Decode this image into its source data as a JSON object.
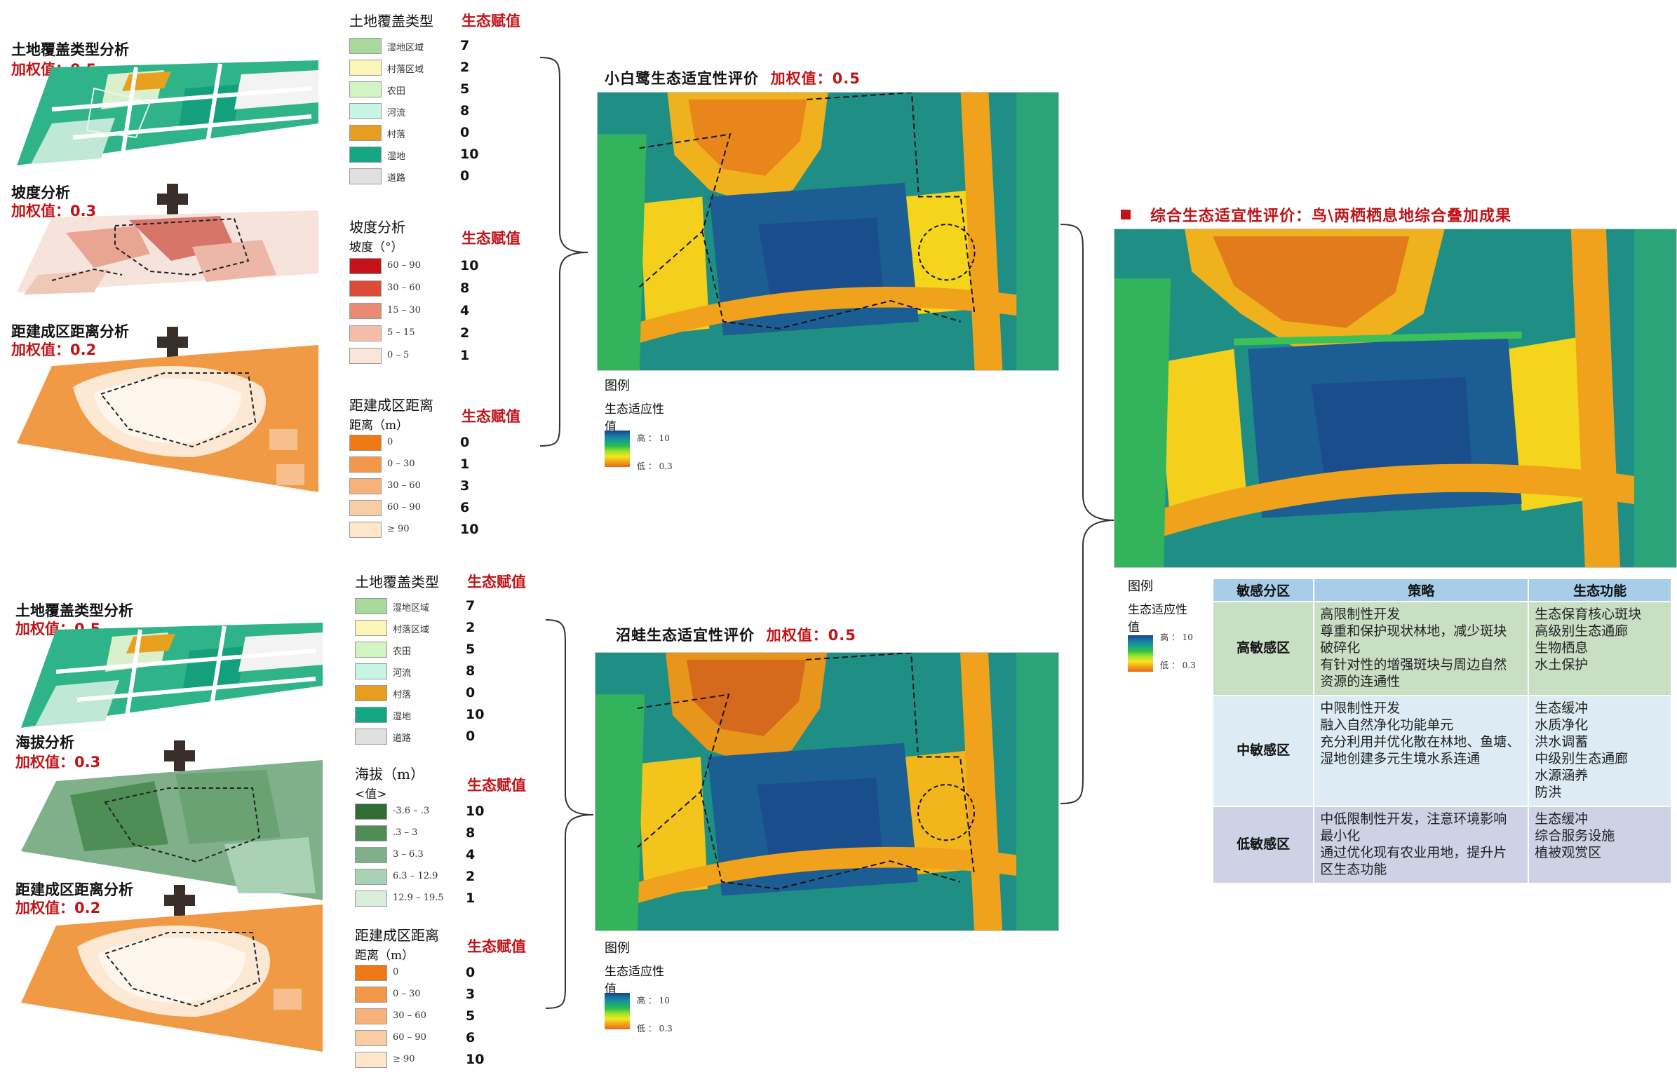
{
  "group_top": {
    "layers": [
      {
        "title": "土地覆盖类型分析",
        "weight": "加权值：0.5"
      },
      {
        "title": "坡度分析",
        "weight": "加权值：0.3"
      },
      {
        "title": "距建成区距离分析",
        "weight": "加权值：0.2"
      }
    ],
    "legend_landcover": {
      "heading": "土地覆盖类型",
      "score_heading": "生态赋值",
      "rows": [
        {
          "label": "湿地区域",
          "score": "7",
          "color": "#a9d89c"
        },
        {
          "label": "村落区域",
          "score": "2",
          "color": "#fbf6b8"
        },
        {
          "label": "农田",
          "score": "5",
          "color": "#d2f3c2"
        },
        {
          "label": "河流",
          "score": "8",
          "color": "#c6f5e4"
        },
        {
          "label": "村落",
          "score": "0",
          "color": "#e79d1f"
        },
        {
          "label": "湿地",
          "score": "10",
          "color": "#15a783"
        },
        {
          "label": "道路",
          "score": "0",
          "color": "#e0e0e0"
        }
      ]
    },
    "legend_second": {
      "heading": "坡度分析",
      "subheading": "坡度（°）",
      "score_heading": "生态赋值",
      "rows": [
        {
          "label": "60 – 90",
          "score": "10",
          "color": "#c5121b"
        },
        {
          "label": "30 – 60",
          "score": "8",
          "color": "#dc4b37"
        },
        {
          "label": "15 – 30",
          "score": "4",
          "color": "#e98a74"
        },
        {
          "label": "5 – 15",
          "score": "2",
          "color": "#f4bca9"
        },
        {
          "label": "0 – 5",
          "score": "1",
          "color": "#fbe5d8"
        }
      ]
    },
    "legend_distance": {
      "heading": "距建成区距离",
      "subheading": "距离（m）",
      "score_heading": "生态赋值",
      "rows": [
        {
          "label": "0",
          "score": "0",
          "color": "#ef7a15"
        },
        {
          "label": "0 – 30",
          "score": "1",
          "color": "#f39748"
        },
        {
          "label": "30 – 60",
          "score": "3",
          "color": "#f6b27a"
        },
        {
          "label": "60 – 90",
          "score": "6",
          "color": "#f9cda4"
        },
        {
          "label": "≥ 90",
          "score": "10",
          "color": "#fde6cc"
        }
      ]
    }
  },
  "group_bottom": {
    "layers": [
      {
        "title": "土地覆盖类型分析",
        "weight": "加权值：0.5"
      },
      {
        "title": "海拔分析",
        "weight": "加权值：0.3"
      },
      {
        "title": "距建成区距离分析",
        "weight": "加权值：0.2"
      }
    ],
    "legend_landcover": {
      "heading": "土地覆盖类型",
      "score_heading": "生态赋值",
      "rows": [
        {
          "label": "湿地区域",
          "score": "7",
          "color": "#a9d89c"
        },
        {
          "label": "村落区域",
          "score": "2",
          "color": "#fbf6b8"
        },
        {
          "label": "农田",
          "score": "5",
          "color": "#d2f3c2"
        },
        {
          "label": "河流",
          "score": "8",
          "color": "#c6f5e4"
        },
        {
          "label": "村落",
          "score": "0",
          "color": "#e79d1f"
        },
        {
          "label": "湿地",
          "score": "10",
          "color": "#15a783"
        },
        {
          "label": "道路",
          "score": "0",
          "color": "#e0e0e0"
        }
      ]
    },
    "legend_second": {
      "heading": "海拔（m）",
      "subheading": "<值>",
      "score_heading": "生态赋值",
      "rows": [
        {
          "label": "-3.6 – .3",
          "score": "10",
          "color": "#2f6d35"
        },
        {
          "label": ".3 – 3",
          "score": "8",
          "color": "#4f8d57"
        },
        {
          "label": "3 – 6.3",
          "score": "4",
          "color": "#7fb08a"
        },
        {
          "label": "6.3 – 12.9",
          "score": "2",
          "color": "#a9d1b3"
        },
        {
          "label": "12.9 – 19.5",
          "score": "1",
          "color": "#d9efdc"
        }
      ]
    },
    "legend_distance": {
      "heading": "距建成区距离",
      "subheading": "距离（m）",
      "score_heading": "生态赋值",
      "rows": [
        {
          "label": "0",
          "score": "0",
          "color": "#ef7a15"
        },
        {
          "label": "0 – 30",
          "score": "3",
          "color": "#f39748"
        },
        {
          "label": "30 – 60",
          "score": "5",
          "color": "#f6b27a"
        },
        {
          "label": "60 – 90",
          "score": "6",
          "color": "#f9cda4"
        },
        {
          "label": "≥ 90",
          "score": "10",
          "color": "#fde6cc"
        }
      ]
    }
  },
  "map_egret": {
    "title": "小白鹭生态适宜性评价",
    "weight": "加权值：0.5",
    "legend": {
      "title": "图例",
      "name": "生态适应性",
      "value": "值",
      "high": "高 ： 10",
      "low": "低 ： 0.3"
    }
  },
  "map_frog": {
    "title": "沼蛙生态适宜性评价",
    "weight": "加权值：0.5",
    "legend": {
      "title": "图例",
      "name": "生态适应性",
      "value": "值",
      "high": "高 ： 10",
      "low": "低 ： 0.3"
    }
  },
  "composite": {
    "title": "综合生态适宜性评价：鸟\\两栖栖息地综合叠加成果",
    "legend": {
      "title": "图例",
      "name": "生态适应性",
      "value": "值",
      "high": "高 ： 10",
      "low": "低 ： 0.3"
    }
  },
  "table": {
    "headers": [
      "敏感分区",
      "策略",
      "生态功能"
    ],
    "rows": [
      {
        "zone": "高敏感区",
        "strategy": [
          "高限制性开发",
          "尊重和保护现状林地，减少斑块",
          "破碎化",
          "有针对性的增强斑块与周边自然",
          "资源的连通性"
        ],
        "function": [
          "生态保育核心斑块",
          "高级别生态通廊",
          "生物栖息",
          "水土保护"
        ]
      },
      {
        "zone": "中敏感区",
        "strategy": [
          "中限制性开发",
          "融入自然净化功能单元",
          "充分利用并优化散在林地、鱼塘、",
          "湿地创建多元生境水系连通"
        ],
        "function": [
          "生态缓冲",
          "水质净化",
          "洪水调蓄",
          "中级别生态通廊",
          "水源涵养",
          "防洪"
        ]
      },
      {
        "zone": "低敏感区",
        "strategy": [
          "中低限制性开发，注意环境影响",
          "最小化",
          "通过优化现有农业用地，提升片",
          "区生态功能"
        ],
        "function": [
          "生态缓冲",
          "综合服务设施",
          "植被观赏区"
        ]
      }
    ]
  },
  "colors": {
    "accent_red": "#c01418",
    "table_header": "#a7cde8",
    "row_high": "#c8dfc4",
    "row_mid": "#dcebf4",
    "row_low": "#cdd2e6"
  }
}
